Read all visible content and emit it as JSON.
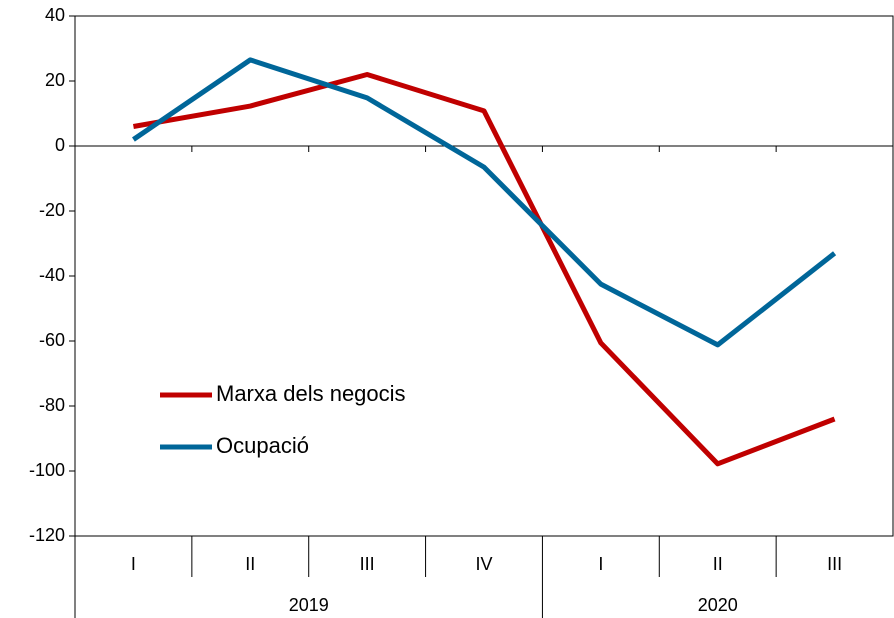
{
  "chart_data": {
    "type": "line",
    "groups": [
      {
        "name": "2019",
        "categories": [
          "I",
          "II",
          "III",
          "IV"
        ]
      },
      {
        "name": "2020",
        "categories": [
          "I",
          "II",
          "III"
        ]
      }
    ],
    "series": [
      {
        "name": "Marxa dels negocis",
        "color": "#c00000",
        "values": [
          6,
          12.3,
          22,
          10.8,
          -60.6,
          -97.8,
          -84
        ]
      },
      {
        "name": "Ocupació",
        "color": "#006699",
        "values": [
          2,
          26.5,
          14.8,
          -6.5,
          -42.5,
          -61.2,
          -33
        ]
      }
    ],
    "ylim": [
      -120,
      40
    ],
    "yticks": [
      -120,
      -100,
      -80,
      -60,
      -40,
      -20,
      0,
      20,
      40
    ],
    "legend": "lower left"
  }
}
